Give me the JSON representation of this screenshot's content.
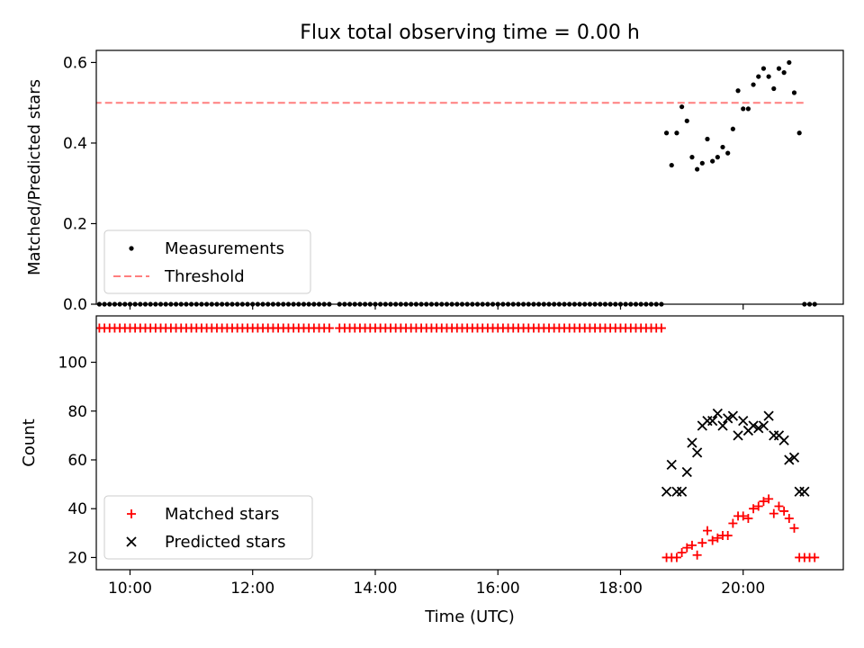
{
  "figure": {
    "title": "Flux total observing time = 0.00 h",
    "xlabel": "Time (UTC)"
  },
  "chart_data": [
    {
      "type": "scatter",
      "ylabel": "Matched/Predicted stars",
      "xlim": [
        "09:27",
        "21:38"
      ],
      "ylim": [
        0,
        0.63
      ],
      "yticks": [
        0.0,
        0.2,
        0.4,
        0.6
      ],
      "ytick_labels": [
        "0.0",
        "0.2",
        "0.4",
        "0.6"
      ],
      "xticks": [
        "10:00",
        "12:00",
        "14:00",
        "16:00",
        "18:00",
        "20:00"
      ],
      "grid": false,
      "legend": {
        "placement": "lower-left",
        "entries": [
          "Measurements",
          "Threshold"
        ]
      },
      "series": [
        {
          "name": "Measurements",
          "kind": "points",
          "color": "#000000",
          "zero_runs": [
            {
              "start": "09:25",
              "end": "13:15",
              "step_min": 5
            },
            {
              "start": "13:25",
              "end": "18:40",
              "step_min": 5
            }
          ],
          "x": [
            "18:45",
            "18:50",
            "18:55",
            "19:00",
            "19:05",
            "19:10",
            "19:15",
            "19:20",
            "19:25",
            "19:30",
            "19:35",
            "19:40",
            "19:45",
            "19:50",
            "19:55",
            "20:00",
            "20:05",
            "20:10",
            "20:15",
            "20:20",
            "20:25",
            "20:30",
            "20:35",
            "20:40",
            "20:45",
            "20:50",
            "20:55",
            "21:00",
            "21:05",
            "21:10"
          ],
          "y": [
            0.425,
            0.345,
            0.425,
            0.49,
            0.455,
            0.365,
            0.335,
            0.35,
            0.41,
            0.355,
            0.365,
            0.39,
            0.375,
            0.435,
            0.53,
            0.485,
            0.485,
            0.545,
            0.565,
            0.585,
            0.565,
            0.535,
            0.585,
            0.575,
            0.6,
            0.525,
            0.425,
            0.0,
            0.0,
            0.0
          ]
        },
        {
          "name": "Threshold",
          "kind": "dashed-line",
          "color": "#ff7f7f",
          "x": [
            "09:25",
            "21:00"
          ],
          "y": [
            0.5,
            0.5
          ]
        }
      ]
    },
    {
      "type": "scatter",
      "ylabel": "Count",
      "xlim": [
        "09:27",
        "21:38"
      ],
      "ylim": [
        15,
        119
      ],
      "yticks": [
        20,
        40,
        60,
        80,
        100
      ],
      "ytick_labels": [
        "20",
        "40",
        "60",
        "80",
        "100"
      ],
      "xticks": [
        "10:00",
        "12:00",
        "14:00",
        "16:00",
        "18:00",
        "20:00"
      ],
      "grid": false,
      "legend": {
        "placement": "lower-left",
        "entries": [
          "Matched stars",
          "Predicted stars"
        ]
      },
      "series": [
        {
          "name": "Matched stars",
          "marker": "plus",
          "color": "#ff0000",
          "const_runs": [
            {
              "start": "09:25",
              "end": "13:15",
              "step_min": 5,
              "value": 114
            },
            {
              "start": "13:25",
              "end": "18:40",
              "step_min": 5,
              "value": 114
            }
          ],
          "x": [
            "18:45",
            "18:50",
            "18:55",
            "19:00",
            "19:05",
            "19:10",
            "19:15",
            "19:20",
            "19:25",
            "19:30",
            "19:35",
            "19:40",
            "19:45",
            "19:50",
            "19:55",
            "20:00",
            "20:05",
            "20:10",
            "20:15",
            "20:20",
            "20:25",
            "20:30",
            "20:35",
            "20:40",
            "20:45",
            "20:50",
            "20:55",
            "21:00",
            "21:05",
            "21:10"
          ],
          "y": [
            20,
            20,
            20,
            22,
            24,
            25,
            21,
            26,
            31,
            27,
            28,
            29,
            29,
            34,
            37,
            37,
            36,
            40,
            41,
            43,
            44,
            38,
            41,
            39,
            36,
            32,
            20,
            20,
            20,
            20
          ]
        },
        {
          "name": "Predicted stars",
          "marker": "x",
          "color": "#000000",
          "x": [
            "18:45",
            "18:50",
            "18:55",
            "19:00",
            "19:05",
            "19:10",
            "19:15",
            "19:20",
            "19:25",
            "19:30",
            "19:35",
            "19:40",
            "19:45",
            "19:50",
            "19:55",
            "20:00",
            "20:05",
            "20:10",
            "20:15",
            "20:20",
            "20:25",
            "20:30",
            "20:35",
            "20:40",
            "20:45",
            "20:50",
            "20:55",
            "21:00"
          ],
          "y": [
            47,
            58,
            47,
            47,
            55,
            67,
            63,
            74,
            76,
            76,
            79,
            74,
            77,
            78,
            70,
            76,
            72,
            74,
            73,
            74,
            78,
            70,
            70,
            68,
            60,
            61,
            47,
            47
          ]
        }
      ]
    }
  ]
}
